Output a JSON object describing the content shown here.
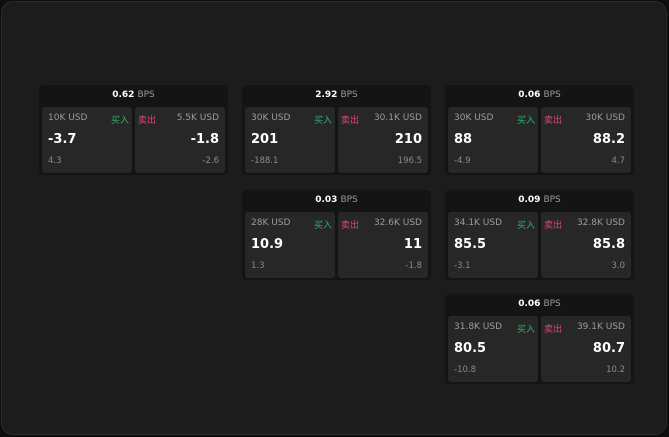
{
  "labels": {
    "buy": "买入",
    "sell": "卖出",
    "unit": "BPS"
  },
  "colors": {
    "buy": "#2fb36a",
    "sell": "#e0457b"
  },
  "cards": [
    {
      "spread": "0.62",
      "bid_size": "10K USD",
      "bid": "-3.7",
      "bid_change": "4.3",
      "ask_size": "5.5K USD",
      "ask": "-1.8",
      "ask_change": "-2.6"
    },
    {
      "spread": "2.92",
      "bid_size": "30K USD",
      "bid": "201",
      "bid_change": "-188.1",
      "ask_size": "30.1K USD",
      "ask": "210",
      "ask_change": "196.5"
    },
    {
      "spread": "0.06",
      "bid_size": "30K USD",
      "bid": "88",
      "bid_change": "-4.9",
      "ask_size": "30K USD",
      "ask": "88.2",
      "ask_change": "4.7"
    },
    {
      "spread": "0.03",
      "bid_size": "28K USD",
      "bid": "10.9",
      "bid_change": "1.3",
      "ask_size": "32.6K USD",
      "ask": "11",
      "ask_change": "-1.8"
    },
    {
      "spread": "0.09",
      "bid_size": "34.1K USD",
      "bid": "85.5",
      "bid_change": "-3.1",
      "ask_size": "32.8K USD",
      "ask": "85.8",
      "ask_change": "3.0"
    },
    {
      "spread": "0.06",
      "bid_size": "31.8K USD",
      "bid": "80.5",
      "bid_change": "-10.8",
      "ask_size": "39.1K USD",
      "ask": "80.7",
      "ask_change": "10.2"
    }
  ]
}
